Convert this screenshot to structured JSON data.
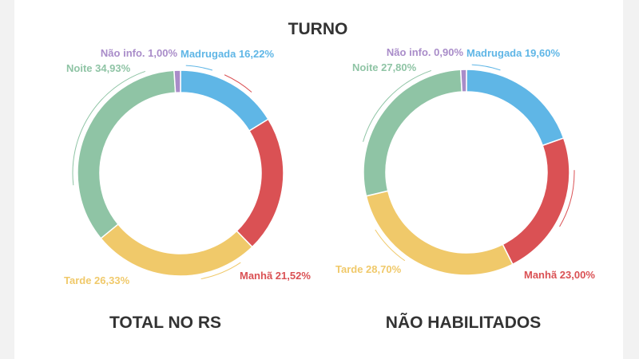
{
  "title": "TURNO",
  "colors": {
    "Madrugada": "#5fb6e6",
    "Manhã": "#da5154",
    "Tarde": "#f0c96a",
    "Noite": "#8fc4a5",
    "Não info.": "#a98cc9"
  },
  "chart_data": [
    {
      "type": "pie",
      "title": "TOTAL NO RS",
      "categories": [
        "Madrugada",
        "Manhã",
        "Tarde",
        "Noite",
        "Não info."
      ],
      "values": [
        16.22,
        21.52,
        26.33,
        34.93,
        1.0
      ],
      "labels": [
        "Madrugada 16,22%",
        "Manhã 21,52%",
        "Tarde 26,33%",
        "Noite 34,93%",
        "Não info. 1,00%"
      ]
    },
    {
      "type": "pie",
      "title": "NÃO HABILITADOS",
      "categories": [
        "Madrugada",
        "Manhã",
        "Tarde",
        "Noite",
        "Não info."
      ],
      "values": [
        19.6,
        23.0,
        28.7,
        27.8,
        0.9
      ],
      "labels": [
        "Madrugada 19,60%",
        "Manhã 23,00%",
        "Tarde 28,70%",
        "Noite 27,80%",
        "Não info. 0,90%"
      ]
    }
  ]
}
